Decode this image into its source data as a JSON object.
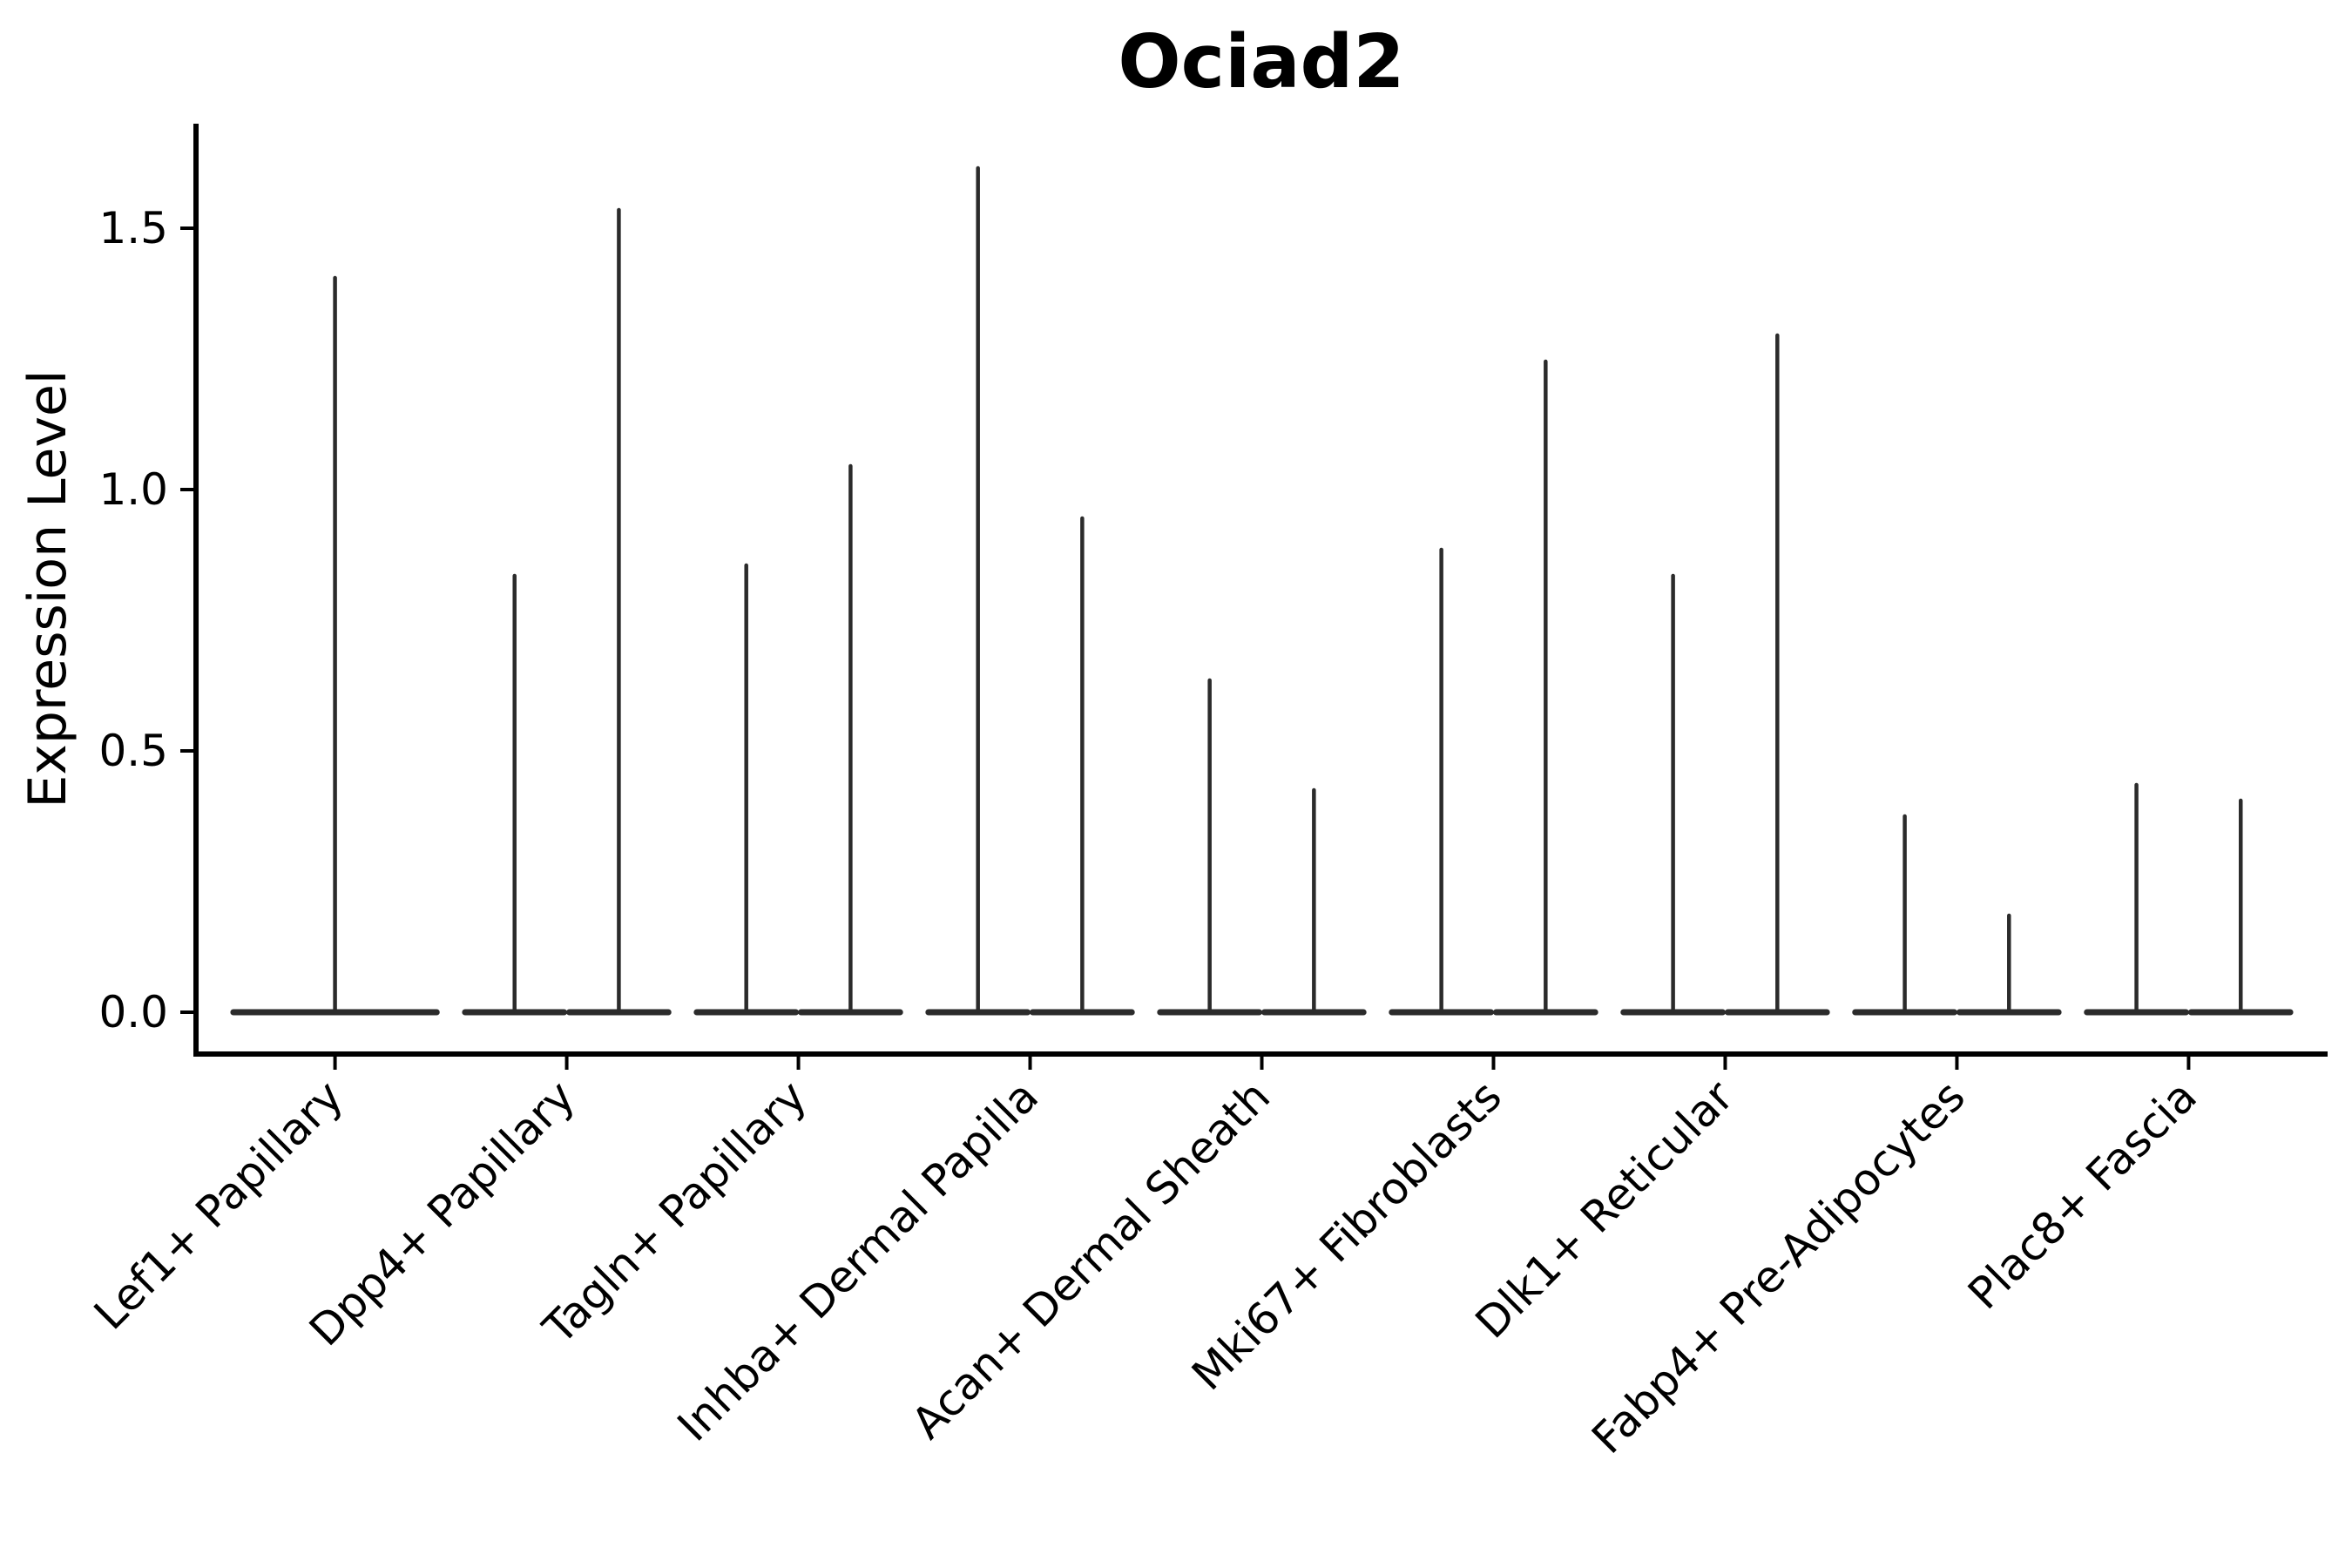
{
  "chart_data": {
    "type": "violin",
    "title": "Ociad2",
    "ylabel": "Expression Level",
    "xlabel": "",
    "ylim": [
      -0.08,
      1.7
    ],
    "yticks": [
      {
        "label": "0.0",
        "value": 0.0
      },
      {
        "label": "0.5",
        "value": 0.5
      },
      {
        "label": "1.0",
        "value": 1.0
      },
      {
        "label": "1.5",
        "value": 1.5
      }
    ],
    "grid": false,
    "legend": null,
    "line_color": "#2b2b2b",
    "axis_color": "#000000",
    "background_color": "#ffffff",
    "categories": [
      {
        "label": "Lef1+ Papillary",
        "violins": [
          {
            "position": "center",
            "offset": 0.0,
            "width": 0.9,
            "max": 1.41
          }
        ]
      },
      {
        "label": "Dpp4+ Papillary",
        "violins": [
          {
            "position": "left",
            "offset": -0.225,
            "width": 0.45,
            "max": 0.84
          },
          {
            "position": "right",
            "offset": 0.225,
            "width": 0.45,
            "max": 1.54
          }
        ]
      },
      {
        "label": "Tagln+ Papillary",
        "violins": [
          {
            "position": "left",
            "offset": -0.225,
            "width": 0.45,
            "max": 0.86
          },
          {
            "position": "right",
            "offset": 0.225,
            "width": 0.45,
            "max": 1.05
          }
        ]
      },
      {
        "label": "Inhba+ Dermal Papilla",
        "violins": [
          {
            "position": "left",
            "offset": -0.225,
            "width": 0.45,
            "max": 1.62
          },
          {
            "position": "right",
            "offset": 0.225,
            "width": 0.45,
            "max": 0.95
          }
        ]
      },
      {
        "label": "Acan+ Dermal Sheath",
        "violins": [
          {
            "position": "left",
            "offset": -0.225,
            "width": 0.45,
            "max": 0.64
          },
          {
            "position": "right",
            "offset": 0.225,
            "width": 0.45,
            "max": 0.43
          }
        ]
      },
      {
        "label": "Mki67+ Fibroblasts",
        "violins": [
          {
            "position": "left",
            "offset": -0.225,
            "width": 0.45,
            "max": 0.89
          },
          {
            "position": "right",
            "offset": 0.225,
            "width": 0.45,
            "max": 1.25
          }
        ]
      },
      {
        "label": "Dlk1+ Reticular",
        "violins": [
          {
            "position": "left",
            "offset": -0.225,
            "width": 0.45,
            "max": 0.84
          },
          {
            "position": "right",
            "offset": 0.225,
            "width": 0.45,
            "max": 1.3
          }
        ]
      },
      {
        "label": "Fabp4+ Pre-Adipocytes",
        "violins": [
          {
            "position": "left",
            "offset": -0.225,
            "width": 0.45,
            "max": 0.38
          },
          {
            "position": "right",
            "offset": 0.225,
            "width": 0.45,
            "max": 0.19
          }
        ]
      },
      {
        "label": "Plac8+ Fascia",
        "violins": [
          {
            "position": "left",
            "offset": -0.225,
            "width": 0.45,
            "max": 0.44
          },
          {
            "position": "right",
            "offset": 0.225,
            "width": 0.45,
            "max": 0.41
          }
        ]
      }
    ]
  }
}
